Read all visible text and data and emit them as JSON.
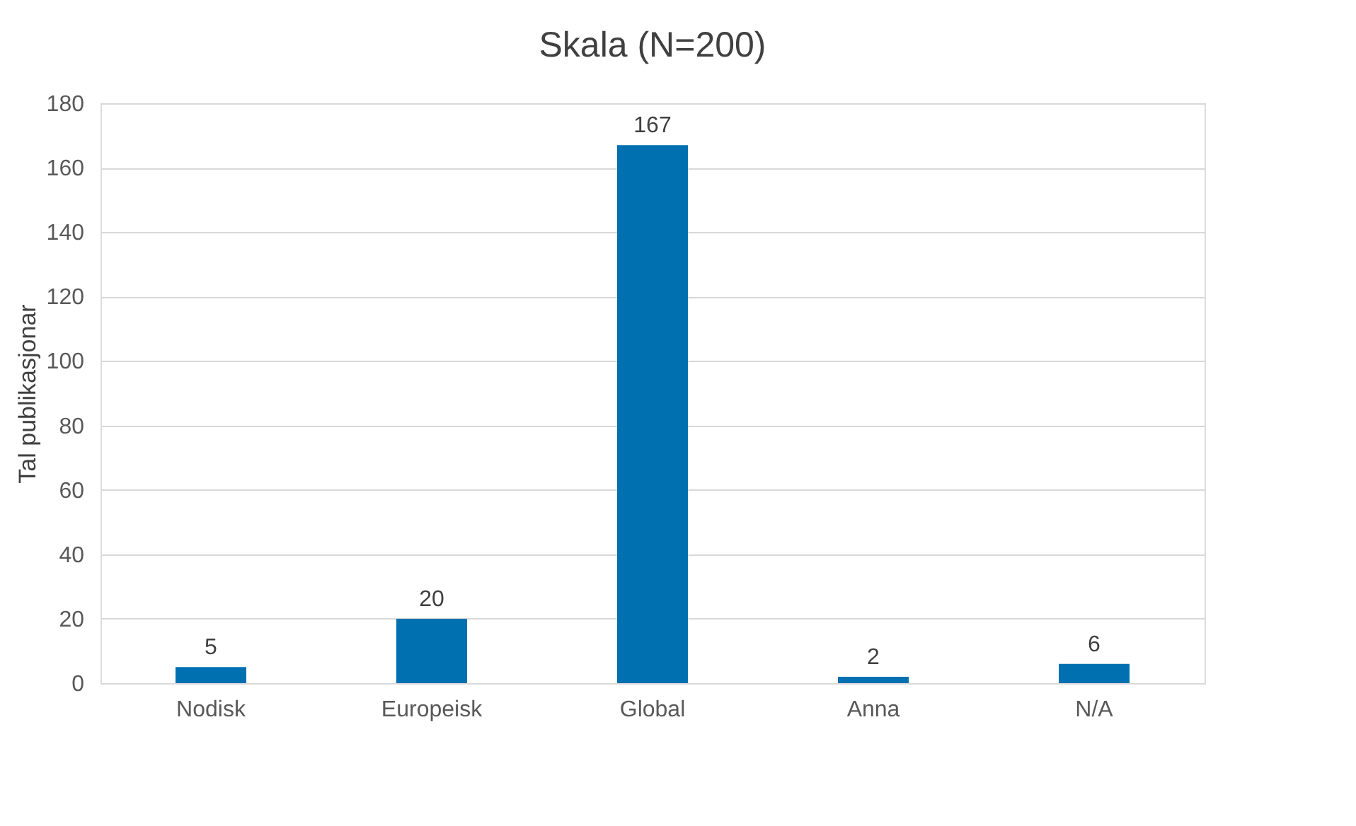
{
  "chart_data": {
    "type": "bar",
    "title": "Skala (N=200)",
    "ylabel": "Tal publikasjonar",
    "categories": [
      "Nodisk",
      "Europeisk",
      "Global",
      "Anna",
      "N/A"
    ],
    "values": [
      5,
      20,
      167,
      2,
      6
    ],
    "color": "#0070b0",
    "ylim": [
      0,
      180
    ],
    "yticks": [
      0,
      20,
      40,
      60,
      80,
      100,
      120,
      140,
      160,
      180
    ],
    "grid": "y",
    "data_labels": true
  }
}
